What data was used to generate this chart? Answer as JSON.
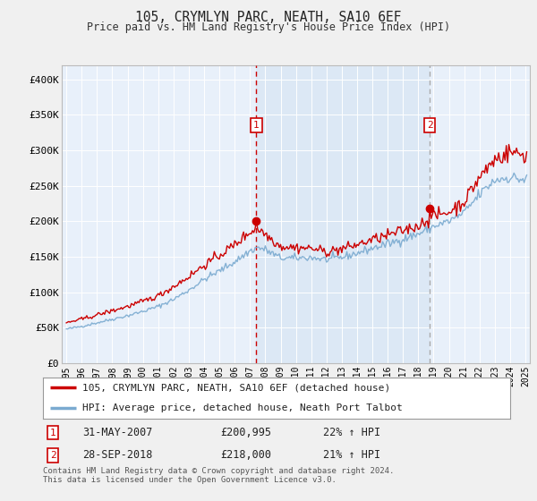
{
  "title": "105, CRYMLYN PARC, NEATH, SA10 6EF",
  "subtitle": "Price paid vs. HM Land Registry's House Price Index (HPI)",
  "red_label": "105, CRYMLYN PARC, NEATH, SA10 6EF (detached house)",
  "blue_label": "HPI: Average price, detached house, Neath Port Talbot",
  "footer": "Contains HM Land Registry data © Crown copyright and database right 2024.\nThis data is licensed under the Open Government Licence v3.0.",
  "marker1": {
    "label": "1",
    "date": "31-MAY-2007",
    "price": "£200,995",
    "hpi": "22% ↑ HPI",
    "x": 2007.42
  },
  "marker2": {
    "label": "2",
    "date": "28-SEP-2018",
    "price": "£218,000",
    "hpi": "21% ↑ HPI",
    "x": 2018.75
  },
  "ylim": [
    0,
    420000
  ],
  "xlim": [
    1994.7,
    2025.3
  ],
  "plot_bg_light": "#e8f0fa",
  "plot_bg_mid": "#dce8f5",
  "red_color": "#cc0000",
  "blue_color": "#7aaad0",
  "grid_color": "#ffffff",
  "vline1_color": "#cc0000",
  "vline2_color": "#aaaaaa",
  "yticks": [
    0,
    50000,
    100000,
    150000,
    200000,
    250000,
    300000,
    350000,
    400000
  ],
  "ytick_labels": [
    "£0",
    "£50K",
    "£100K",
    "£150K",
    "£200K",
    "£250K",
    "£300K",
    "£350K",
    "£400K"
  ],
  "xticks": [
    1995,
    1996,
    1997,
    1998,
    1999,
    2000,
    2001,
    2002,
    2003,
    2004,
    2005,
    2006,
    2007,
    2008,
    2009,
    2010,
    2011,
    2012,
    2013,
    2014,
    2015,
    2016,
    2017,
    2018,
    2019,
    2020,
    2021,
    2022,
    2023,
    2024,
    2025
  ],
  "fig_bg": "#f0f0f0"
}
